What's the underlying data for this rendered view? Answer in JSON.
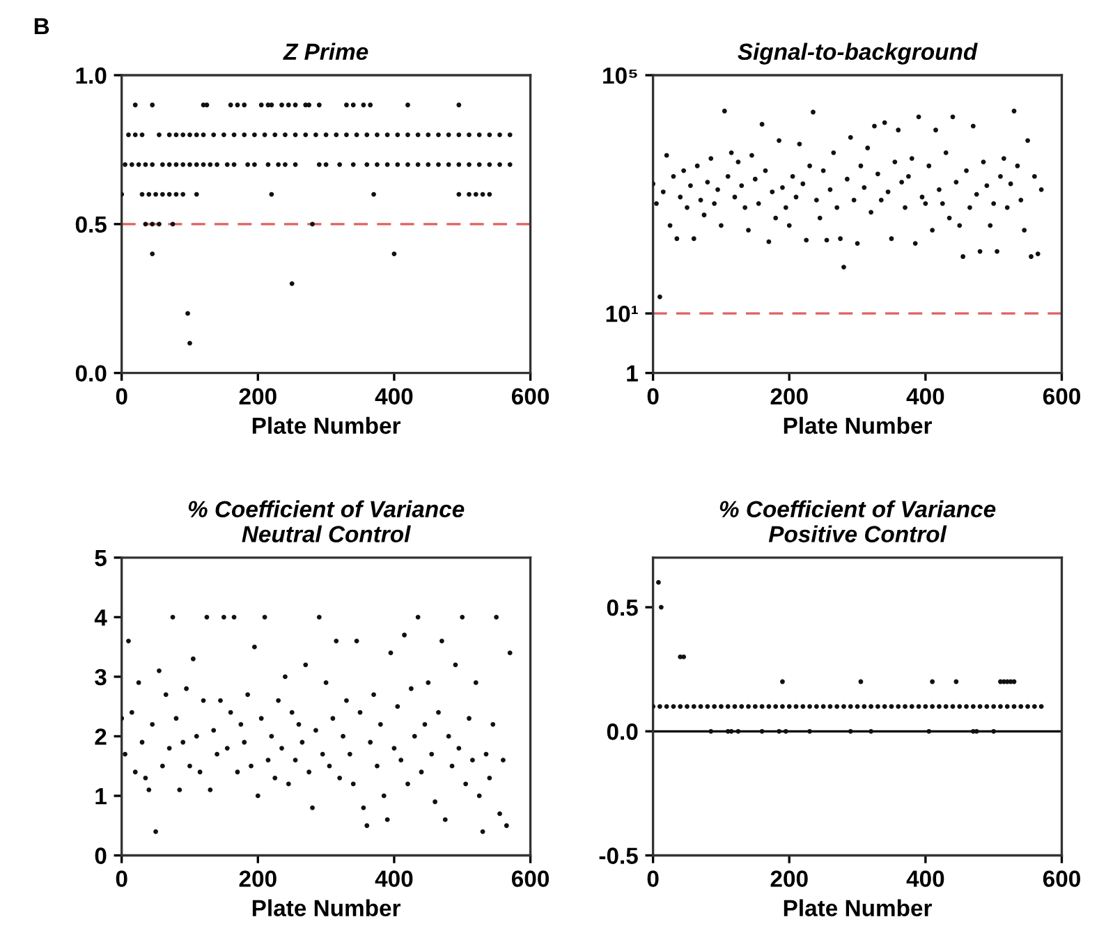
{
  "chart_data": [
    {
      "type": "scatter",
      "title": "Z Prime",
      "xlabel": "Plate Number",
      "annotations": [
        "B"
      ],
      "marker": "circle",
      "color": "#111111",
      "xlim": [
        0,
        600
      ],
      "xticks": [
        0,
        200,
        400,
        600
      ],
      "ylim": [
        0,
        1
      ],
      "yticks": [
        {
          "value": 0,
          "label": "0.0"
        },
        {
          "value": 0.5,
          "label": "0.5"
        },
        {
          "value": 1,
          "label": "1.0"
        }
      ],
      "ref_lines": [
        {
          "axis": "y",
          "value": 0.5,
          "label": null,
          "color": "#e06060",
          "line_style": "dashed"
        }
      ],
      "x": [
        20,
        45,
        120,
        125,
        160,
        170,
        180,
        205,
        215,
        220,
        235,
        245,
        255,
        270,
        275,
        290,
        330,
        340,
        355,
        365,
        420,
        495,
        10,
        20,
        30,
        55,
        70,
        80,
        90,
        100,
        110,
        120,
        135,
        150,
        165,
        180,
        195,
        210,
        225,
        240,
        255,
        270,
        285,
        300,
        315,
        330,
        345,
        360,
        375,
        390,
        405,
        420,
        435,
        450,
        465,
        480,
        495,
        510,
        525,
        540,
        555,
        570,
        5,
        15,
        25,
        35,
        45,
        60,
        70,
        80,
        90,
        100,
        110,
        120,
        130,
        140,
        155,
        165,
        185,
        195,
        215,
        230,
        240,
        255,
        290,
        300,
        320,
        340,
        360,
        375,
        390,
        405,
        420,
        435,
        450,
        465,
        480,
        495,
        510,
        525,
        540,
        555,
        570,
        0,
        30,
        40,
        50,
        60,
        70,
        80,
        90,
        110,
        220,
        370,
        495,
        510,
        520,
        530,
        540,
        35,
        45,
        55,
        75,
        280,
        45,
        400,
        250,
        97,
        100
      ],
      "values": [
        0.9,
        0.9,
        0.9,
        0.9,
        0.9,
        0.9,
        0.9,
        0.9,
        0.9,
        0.9,
        0.9,
        0.9,
        0.9,
        0.9,
        0.9,
        0.9,
        0.9,
        0.9,
        0.9,
        0.9,
        0.9,
        0.9,
        0.8,
        0.8,
        0.8,
        0.8,
        0.8,
        0.8,
        0.8,
        0.8,
        0.8,
        0.8,
        0.8,
        0.8,
        0.8,
        0.8,
        0.8,
        0.8,
        0.8,
        0.8,
        0.8,
        0.8,
        0.8,
        0.8,
        0.8,
        0.8,
        0.8,
        0.8,
        0.8,
        0.8,
        0.8,
        0.8,
        0.8,
        0.8,
        0.8,
        0.8,
        0.8,
        0.8,
        0.8,
        0.8,
        0.8,
        0.8,
        0.7,
        0.7,
        0.7,
        0.7,
        0.7,
        0.7,
        0.7,
        0.7,
        0.7,
        0.7,
        0.7,
        0.7,
        0.7,
        0.7,
        0.7,
        0.7,
        0.7,
        0.7,
        0.7,
        0.7,
        0.7,
        0.7,
        0.7,
        0.7,
        0.7,
        0.7,
        0.7,
        0.7,
        0.7,
        0.7,
        0.7,
        0.7,
        0.7,
        0.7,
        0.7,
        0.7,
        0.7,
        0.7,
        0.7,
        0.7,
        0.7,
        0.6,
        0.6,
        0.6,
        0.6,
        0.6,
        0.6,
        0.6,
        0.6,
        0.6,
        0.6,
        0.6,
        0.6,
        0.6,
        0.6,
        0.6,
        0.6,
        0.5,
        0.5,
        0.5,
        0.5,
        0.5,
        0.4,
        0.4,
        0.3,
        0.2,
        0.1
      ]
    },
    {
      "type": "scatter",
      "title": "Signal-to-background",
      "xlabel": "Plate Number",
      "marker": "circle",
      "color": "#111111",
      "log": "y",
      "xlim": [
        0,
        600
      ],
      "xticks": [
        0,
        200,
        400,
        600
      ],
      "ylim": [
        1,
        100000
      ],
      "yticks": [
        {
          "value": 1,
          "label": "1"
        },
        {
          "value": 10,
          "label": "10¹"
        },
        {
          "value": 100000,
          "label": "10⁵"
        }
      ],
      "ref_lines": [
        {
          "axis": "y",
          "value": 10,
          "label": null,
          "color": "#e06060",
          "line_style": "dashed"
        }
      ],
      "x": [
        0,
        5,
        10,
        15,
        20,
        25,
        30,
        35,
        40,
        45,
        50,
        55,
        60,
        65,
        70,
        75,
        80,
        85,
        90,
        95,
        100,
        105,
        110,
        115,
        120,
        125,
        130,
        135,
        140,
        145,
        150,
        155,
        160,
        165,
        170,
        175,
        180,
        185,
        190,
        195,
        200,
        205,
        210,
        215,
        220,
        225,
        230,
        235,
        240,
        245,
        250,
        255,
        260,
        265,
        270,
        275,
        280,
        285,
        290,
        295,
        300,
        305,
        310,
        315,
        320,
        325,
        330,
        335,
        340,
        345,
        350,
        355,
        360,
        365,
        370,
        375,
        380,
        385,
        390,
        395,
        400,
        405,
        410,
        415,
        420,
        425,
        430,
        435,
        440,
        445,
        450,
        455,
        460,
        465,
        470,
        475,
        480,
        485,
        490,
        495,
        500,
        505,
        510,
        515,
        520,
        525,
        530,
        535,
        540,
        545,
        550,
        555,
        560,
        565,
        570
      ],
      "values": [
        1500,
        700,
        19,
        1100,
        4500,
        300,
        2000,
        180,
        900,
        2500,
        600,
        1400,
        180,
        3000,
        800,
        450,
        1600,
        4000,
        700,
        1200,
        300,
        25000,
        2000,
        5000,
        900,
        3500,
        1400,
        600,
        250,
        4500,
        1800,
        700,
        15000,
        2500,
        160,
        1100,
        400,
        8000,
        1300,
        600,
        300,
        2000,
        900,
        7000,
        1500,
        170,
        3000,
        24000,
        800,
        400,
        2500,
        170,
        1200,
        5000,
        600,
        180,
        60,
        1800,
        9000,
        800,
        150,
        3000,
        1300,
        6000,
        500,
        14000,
        2200,
        800,
        16000,
        1100,
        180,
        3500,
        12000,
        1600,
        600,
        2000,
        4000,
        150,
        20000,
        900,
        700,
        3000,
        250,
        12000,
        1200,
        700,
        5000,
        400,
        20000,
        1600,
        300,
        90,
        2500,
        600,
        14000,
        1000,
        110,
        3500,
        1400,
        300,
        700,
        110,
        2000,
        4000,
        600,
        1500,
        25000,
        3000,
        800,
        250,
        8000,
        90,
        2000,
        100,
        1200
      ]
    },
    {
      "type": "scatter",
      "title": "% Coefficient of Variance\nNeutral Control",
      "xlabel": "Plate Number",
      "marker": "circle",
      "color": "#111111",
      "xlim": [
        0,
        600
      ],
      "xticks": [
        0,
        200,
        400,
        600
      ],
      "ylim": [
        0,
        5
      ],
      "yticks": [
        0,
        1,
        2,
        3,
        4,
        5
      ],
      "x": [
        0,
        5,
        10,
        15,
        20,
        25,
        30,
        35,
        40,
        45,
        50,
        55,
        60,
        65,
        70,
        75,
        80,
        85,
        90,
        95,
        100,
        105,
        110,
        115,
        120,
        125,
        130,
        135,
        140,
        145,
        150,
        155,
        160,
        165,
        170,
        175,
        180,
        185,
        190,
        195,
        200,
        205,
        210,
        215,
        220,
        225,
        230,
        235,
        240,
        245,
        250,
        255,
        260,
        265,
        270,
        275,
        280,
        285,
        290,
        295,
        300,
        305,
        310,
        315,
        320,
        325,
        330,
        335,
        340,
        345,
        350,
        355,
        360,
        365,
        370,
        375,
        380,
        385,
        390,
        395,
        400,
        405,
        410,
        415,
        420,
        425,
        430,
        435,
        440,
        445,
        450,
        455,
        460,
        465,
        470,
        475,
        480,
        485,
        490,
        495,
        500,
        505,
        510,
        515,
        520,
        525,
        530,
        535,
        540,
        545,
        550,
        555,
        560,
        565,
        570
      ],
      "values": [
        2.3,
        1.7,
        3.6,
        2.4,
        1.4,
        2.9,
        1.9,
        1.3,
        1.1,
        2.2,
        0.4,
        3.1,
        1.5,
        2.7,
        1.8,
        4.0,
        2.3,
        1.1,
        1.9,
        2.8,
        1.5,
        3.3,
        2.0,
        1.4,
        2.6,
        4.0,
        1.1,
        2.1,
        1.7,
        2.6,
        4.0,
        1.8,
        2.4,
        4.0,
        1.4,
        2.2,
        1.9,
        2.7,
        1.5,
        3.5,
        1.0,
        2.3,
        4.0,
        1.6,
        2.0,
        1.3,
        2.6,
        1.8,
        3.0,
        1.2,
        2.4,
        1.6,
        2.2,
        1.9,
        3.2,
        1.4,
        0.8,
        2.1,
        4.0,
        1.7,
        2.9,
        1.5,
        2.3,
        3.6,
        1.3,
        2.0,
        2.6,
        1.7,
        1.2,
        3.6,
        2.4,
        0.8,
        0.5,
        1.9,
        2.7,
        1.5,
        2.2,
        1.0,
        0.6,
        3.4,
        1.8,
        2.5,
        1.6,
        3.7,
        1.2,
        2.8,
        2.0,
        4.0,
        1.4,
        2.2,
        2.9,
        1.7,
        0.9,
        2.4,
        3.6,
        0.6,
        2.0,
        1.5,
        3.2,
        1.8,
        4.0,
        1.2,
        2.3,
        1.6,
        2.9,
        1.0,
        0.4,
        1.7,
        1.3,
        2.2,
        4.0,
        0.7,
        1.6,
        0.5,
        3.4
      ]
    },
    {
      "type": "scatter",
      "title": "% Coefficient of Variance\nPositive Control",
      "xlabel": "Plate Number",
      "marker": "circle",
      "color": "#111111",
      "xlim": [
        0,
        600
      ],
      "xticks": [
        0,
        200,
        400,
        600
      ],
      "ylim": [
        -0.5,
        0.7
      ],
      "yticks": [
        {
          "value": -0.5,
          "label": "-0.5"
        },
        {
          "value": 0,
          "label": "0.0"
        },
        {
          "value": 0.5,
          "label": "0.5"
        }
      ],
      "ref_lines": [
        {
          "axis": "y",
          "value": 0,
          "label": null,
          "color": "#000000",
          "line_style": "solid"
        }
      ],
      "x": [
        0,
        10,
        20,
        30,
        40,
        50,
        60,
        70,
        80,
        90,
        100,
        110,
        120,
        130,
        140,
        150,
        160,
        170,
        180,
        190,
        200,
        210,
        220,
        230,
        240,
        250,
        260,
        270,
        280,
        290,
        300,
        310,
        320,
        330,
        340,
        350,
        360,
        370,
        380,
        390,
        400,
        410,
        420,
        430,
        440,
        450,
        460,
        470,
        480,
        490,
        500,
        510,
        520,
        530,
        540,
        550,
        560,
        570,
        8,
        12,
        40,
        45,
        190,
        305,
        410,
        445,
        510,
        515,
        520,
        525,
        530,
        85,
        110,
        115,
        125,
        160,
        185,
        195,
        230,
        290,
        320,
        405,
        470,
        475,
        500
      ],
      "values": [
        0.1,
        0.1,
        0.1,
        0.1,
        0.1,
        0.1,
        0.1,
        0.1,
        0.1,
        0.1,
        0.1,
        0.1,
        0.1,
        0.1,
        0.1,
        0.1,
        0.1,
        0.1,
        0.1,
        0.1,
        0.1,
        0.1,
        0.1,
        0.1,
        0.1,
        0.1,
        0.1,
        0.1,
        0.1,
        0.1,
        0.1,
        0.1,
        0.1,
        0.1,
        0.1,
        0.1,
        0.1,
        0.1,
        0.1,
        0.1,
        0.1,
        0.1,
        0.1,
        0.1,
        0.1,
        0.1,
        0.1,
        0.1,
        0.1,
        0.1,
        0.1,
        0.1,
        0.1,
        0.1,
        0.1,
        0.1,
        0.1,
        0.1,
        0.6,
        0.5,
        0.3,
        0.3,
        0.2,
        0.2,
        0.2,
        0.2,
        0.2,
        0.2,
        0.2,
        0.2,
        0.2,
        0,
        0,
        0,
        0,
        0,
        0,
        0,
        0,
        0,
        0,
        0,
        0,
        0,
        0
      ]
    }
  ]
}
